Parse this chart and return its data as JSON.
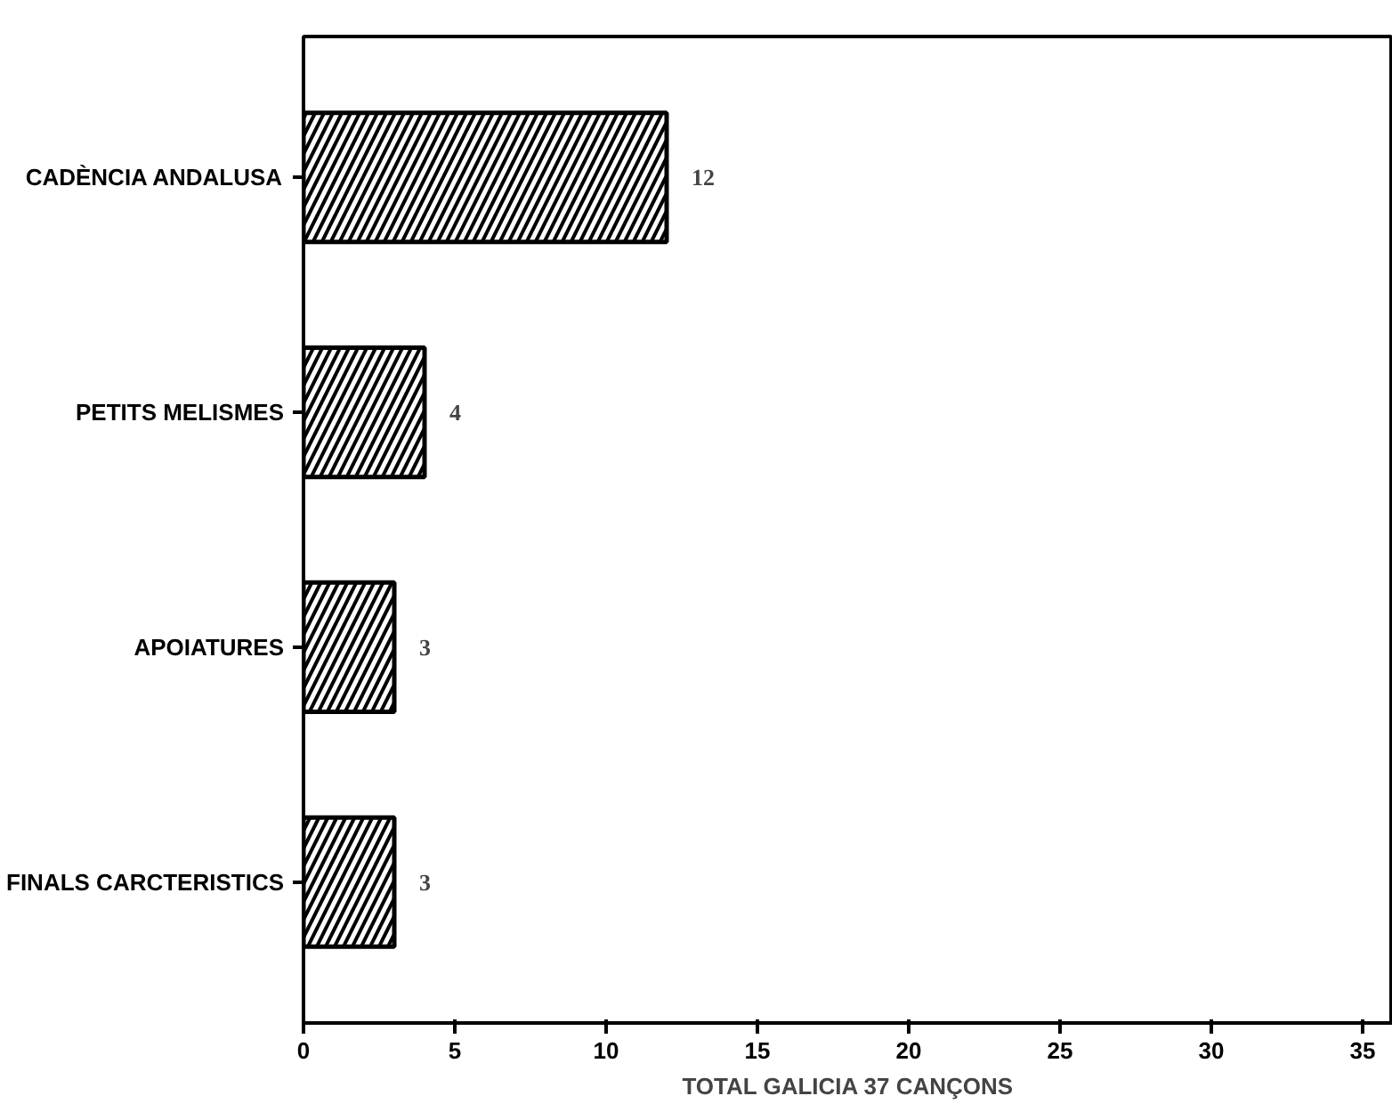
{
  "chart_data": {
    "type": "bar",
    "orientation": "horizontal",
    "xlabel": "TOTAL GALICIA 37 CANÇONS",
    "categories": [
      "CADÈNCIA ANDALUSA",
      "PETITS MELISMES",
      "APOIATURES",
      "FINALS CARCTERISTICS"
    ],
    "values": [
      12,
      4,
      3,
      3
    ],
    "color": "#000000",
    "data_labels": true,
    "xlim": [
      0,
      36
    ],
    "xticks": [
      0,
      5,
      10,
      15,
      20,
      25,
      30,
      35
    ],
    "grid": false
  }
}
